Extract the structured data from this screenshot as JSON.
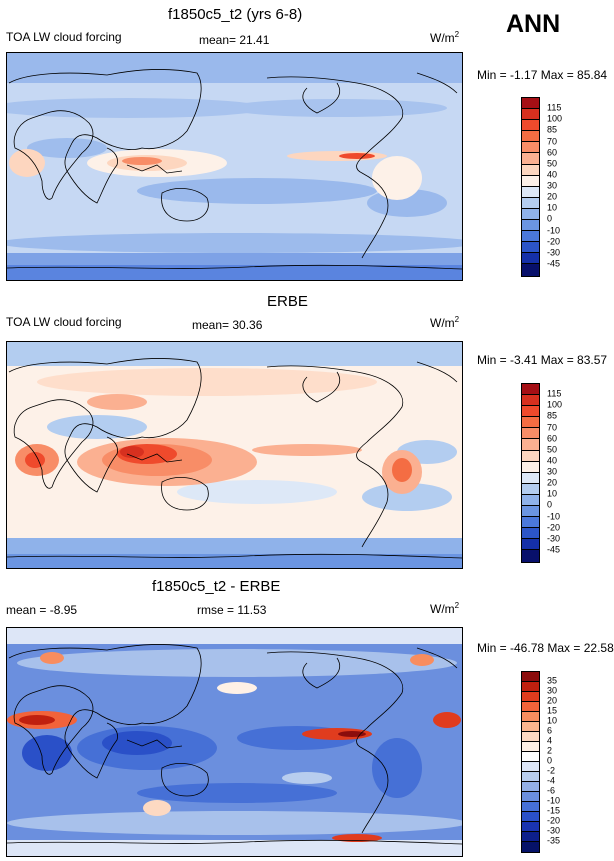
{
  "season": "ANN",
  "units_base": "W/m",
  "units_exp": "2",
  "chart_data": [
    {
      "type": "heatmap",
      "title": "f1850c5_t2 (yrs 6-8)",
      "field": "TOA LW cloud forcing",
      "stat1": "mean=  21.41",
      "stat2": "",
      "minmax": "Min =  -1.17 Max =  85.84",
      "min": -1.17,
      "max": 85.84,
      "mean": 21.41,
      "levels": [
        "115",
        "100",
        "85",
        "70",
        "60",
        "50",
        "40",
        "30",
        "20",
        "10",
        "0",
        "-10",
        "-20",
        "-30",
        "-45"
      ],
      "colors": [
        "#a50f15",
        "#d7301f",
        "#ef4a2c",
        "#f46d43",
        "#f88d67",
        "#fbb091",
        "#fdd6bf",
        "#fdf1e8",
        "#dde8f7",
        "#b3cdf0",
        "#8fb2ea",
        "#6b95e2",
        "#4b78db",
        "#2c55c8",
        "#1530a8",
        "#08106b"
      ]
    },
    {
      "type": "heatmap",
      "title": "ERBE",
      "field": "TOA LW cloud forcing",
      "stat1": "mean=  30.36",
      "stat2": "",
      "minmax": "Min =  -3.41 Max =  83.57",
      "min": -3.41,
      "max": 83.57,
      "mean": 30.36,
      "levels": [
        "115",
        "100",
        "85",
        "70",
        "60",
        "50",
        "40",
        "30",
        "20",
        "10",
        "0",
        "-10",
        "-20",
        "-30",
        "-45"
      ],
      "colors": [
        "#a50f15",
        "#d7301f",
        "#ef4a2c",
        "#f46d43",
        "#f88d67",
        "#fbb091",
        "#fdd6bf",
        "#fdf1e8",
        "#dde8f7",
        "#b3cdf0",
        "#8fb2ea",
        "#6b95e2",
        "#4b78db",
        "#2c55c8",
        "#1530a8",
        "#08106b"
      ]
    },
    {
      "type": "heatmap",
      "title": "f1850c5_t2 - ERBE",
      "field": "mean =  -8.95",
      "stat1": "rmse =  11.53",
      "stat2": "",
      "minmax": "Min = -46.78 Max =  22.58",
      "min": -46.78,
      "max": 22.58,
      "mean": -8.95,
      "rmse": 11.53,
      "levels": [
        "35",
        "30",
        "20",
        "15",
        "10",
        "6",
        "4",
        "2",
        "0",
        "-2",
        "-4",
        "-6",
        "-10",
        "-15",
        "-20",
        "-30",
        "-35"
      ],
      "colors": [
        "#8b0d0d",
        "#c0200f",
        "#e03c1e",
        "#f2633a",
        "#f88d5f",
        "#fbb58e",
        "#fdd9c2",
        "#fff1e6",
        "#ffffff",
        "#dde6f7",
        "#b8cdee",
        "#93afe6",
        "#6b8fde",
        "#4670d6",
        "#2a50c8",
        "#1a34b0",
        "#0d1f8c",
        "#061268"
      ]
    }
  ]
}
